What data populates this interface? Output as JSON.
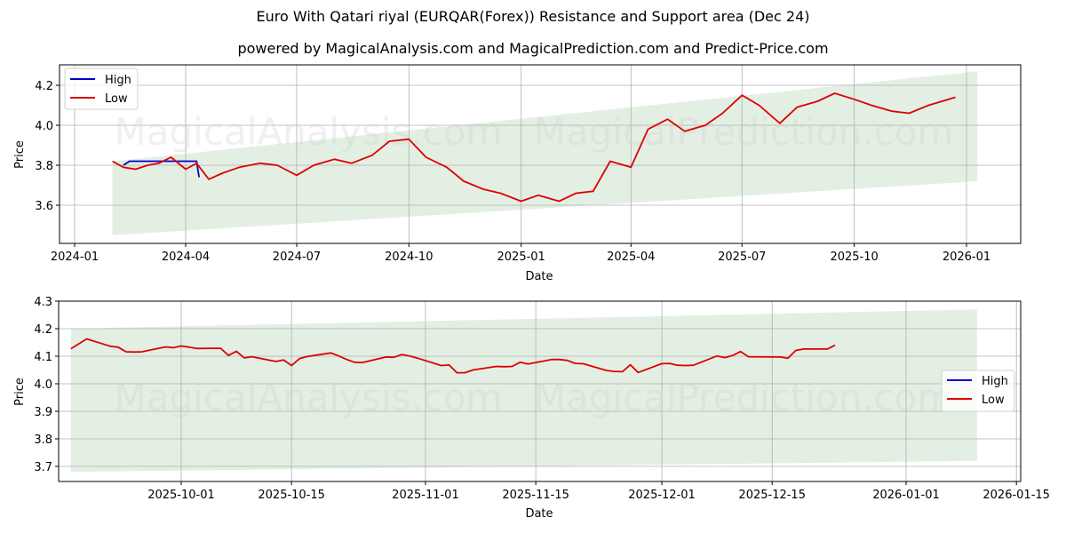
{
  "header": {
    "title": "Euro With Qatari riyal (EURQAR(Forex)) Resistance and Support area (Dec 24)",
    "subtitle": "powered by MagicalAnalysis.com and MagicalPrediction.com and Predict-Price.com"
  },
  "watermarks": [
    "MagicalAnalysis.com",
    "MagicalPrediction.com"
  ],
  "colors": {
    "high": "#0000cc",
    "low": "#dd0000",
    "band": "#e3efe3",
    "grid": "#b0b0b0"
  },
  "chart_data": [
    {
      "type": "line",
      "title": "Euro With Qatari riyal (EURQAR(Forex)) Resistance and Support area (Dec 24)",
      "xlabel": "Date",
      "ylabel": "Price",
      "ylim": [
        3.42,
        4.31
      ],
      "x_ticks": [
        "2024-01",
        "2024-04",
        "2024-07",
        "2024-10",
        "2025-01",
        "2025-04",
        "2025-07",
        "2025-10",
        "2026-01"
      ],
      "y_ticks": [
        "3.6",
        "3.8",
        "4.0",
        "4.2"
      ],
      "grid": true,
      "legend": {
        "position": "upper left",
        "entries": [
          "High",
          "Low"
        ]
      },
      "support_resistance_band": {
        "x_start": "2024-02-01",
        "x_end": "2026-01-10",
        "upper_start": 3.82,
        "upper_end": 4.27,
        "lower_start": 3.45,
        "lower_end": 3.72
      },
      "series": [
        {
          "name": "Low",
          "x": [
            "2024-02-01",
            "2024-02-10",
            "2024-02-20",
            "2024-03-01",
            "2024-03-10",
            "2024-03-20",
            "2024-04-01",
            "2024-04-10",
            "2024-04-20",
            "2024-05-01",
            "2024-05-15",
            "2024-06-01",
            "2024-06-15",
            "2024-07-01",
            "2024-07-15",
            "2024-08-01",
            "2024-08-15",
            "2024-09-01",
            "2024-09-15",
            "2024-10-01",
            "2024-10-15",
            "2024-11-01",
            "2024-11-15",
            "2024-12-01",
            "2024-12-15",
            "2025-01-01",
            "2025-01-15",
            "2025-02-01",
            "2025-02-15",
            "2025-03-01",
            "2025-03-15",
            "2025-04-01",
            "2025-04-15",
            "2025-05-01",
            "2025-05-15",
            "2025-06-01",
            "2025-06-15",
            "2025-07-01",
            "2025-07-15",
            "2025-08-01",
            "2025-08-15",
            "2025-09-01",
            "2025-09-15",
            "2025-10-01",
            "2025-10-15",
            "2025-11-01",
            "2025-11-15",
            "2025-12-01",
            "2025-12-23"
          ],
          "values": [
            3.82,
            3.79,
            3.78,
            3.8,
            3.81,
            3.84,
            3.78,
            3.81,
            3.73,
            3.76,
            3.79,
            3.81,
            3.8,
            3.75,
            3.8,
            3.83,
            3.81,
            3.85,
            3.92,
            3.93,
            3.84,
            3.79,
            3.72,
            3.68,
            3.66,
            3.62,
            3.65,
            3.62,
            3.66,
            3.67,
            3.82,
            3.79,
            3.98,
            4.03,
            3.97,
            4.0,
            4.06,
            4.15,
            4.1,
            4.01,
            4.09,
            4.12,
            4.16,
            4.13,
            4.1,
            4.07,
            4.06,
            4.1,
            4.14
          ]
        },
        {
          "name": "High",
          "note": "Overlaps Low nearly everywhere; visible only around 2024-02 and 2024-04",
          "x": [
            "2024-02-10",
            "2024-02-15",
            "2024-04-10",
            "2024-04-12"
          ],
          "values": [
            3.8,
            3.82,
            3.82,
            3.74
          ]
        }
      ]
    },
    {
      "type": "line",
      "title": "",
      "xlabel": "Date",
      "ylabel": "Price",
      "ylim": [
        3.645,
        4.3
      ],
      "x_ticks": [
        "2025-10-01",
        "2025-10-15",
        "2025-11-01",
        "2025-11-15",
        "2025-12-01",
        "2025-12-15",
        "2026-01-01",
        "2026-01-15"
      ],
      "y_ticks": [
        "3.7",
        "3.8",
        "3.9",
        "4.0",
        "4.1",
        "4.2",
        "4.3"
      ],
      "grid": true,
      "legend": {
        "position": "center right",
        "entries": [
          "High",
          "Low"
        ]
      },
      "support_resistance_band": {
        "x_start": "2025-09-17",
        "x_end": "2026-01-10",
        "upper_start": 4.2,
        "upper_end": 4.27,
        "lower_start": 3.68,
        "lower_end": 3.72
      },
      "series": [
        {
          "name": "Low",
          "x": [
            "2025-09-17",
            "2025-09-19",
            "2025-09-22",
            "2025-09-23",
            "2025-09-24",
            "2025-09-25",
            "2025-09-26",
            "2025-09-29",
            "2025-09-30",
            "2025-10-01",
            "2025-10-02",
            "2025-10-03",
            "2025-10-06",
            "2025-10-07",
            "2025-10-08",
            "2025-10-09",
            "2025-10-10",
            "2025-10-13",
            "2025-10-14",
            "2025-10-15",
            "2025-10-16",
            "2025-10-17",
            "2025-10-20",
            "2025-10-21",
            "2025-10-22",
            "2025-10-23",
            "2025-10-24",
            "2025-10-27",
            "2025-10-28",
            "2025-10-29",
            "2025-10-30",
            "2025-10-31",
            "2025-11-03",
            "2025-11-04",
            "2025-11-05",
            "2025-11-06",
            "2025-11-07",
            "2025-11-10",
            "2025-11-11",
            "2025-11-12",
            "2025-11-13",
            "2025-11-14",
            "2025-11-17",
            "2025-11-18",
            "2025-11-19",
            "2025-11-20",
            "2025-11-21",
            "2025-11-24",
            "2025-11-25",
            "2025-11-26",
            "2025-11-27",
            "2025-11-28",
            "2025-12-01",
            "2025-12-02",
            "2025-12-03",
            "2025-12-04",
            "2025-12-05",
            "2025-12-08",
            "2025-12-09",
            "2025-12-10",
            "2025-12-11",
            "2025-12-12",
            "2025-12-15",
            "2025-12-16",
            "2025-12-17",
            "2025-12-18",
            "2025-12-19",
            "2025-12-22",
            "2025-12-23"
          ],
          "values": [
            4.127,
            4.163,
            4.136,
            4.133,
            4.116,
            4.115,
            4.116,
            4.134,
            4.131,
            4.137,
            4.133,
            4.128,
            4.129,
            4.103,
            4.118,
            4.094,
            4.098,
            4.081,
            4.086,
            4.066,
            4.091,
            4.099,
            4.112,
            4.101,
            4.088,
            4.078,
            4.077,
            4.097,
            4.096,
            4.106,
            4.101,
            4.093,
            4.066,
            4.068,
            4.04,
            4.04,
            4.05,
            4.063,
            4.062,
            4.063,
            4.078,
            4.072,
            4.088,
            4.088,
            4.085,
            4.074,
            4.073,
            4.048,
            4.045,
            4.044,
            4.069,
            4.041,
            4.073,
            4.074,
            4.067,
            4.066,
            4.067,
            4.101,
            4.095,
            4.103,
            4.117,
            4.098,
            4.097,
            4.097,
            4.093,
            4.121,
            4.126,
            4.126,
            4.14
          ]
        },
        {
          "name": "High",
          "note": "Fully overlapped by Low line in this view",
          "x": [],
          "values": []
        }
      ]
    }
  ]
}
